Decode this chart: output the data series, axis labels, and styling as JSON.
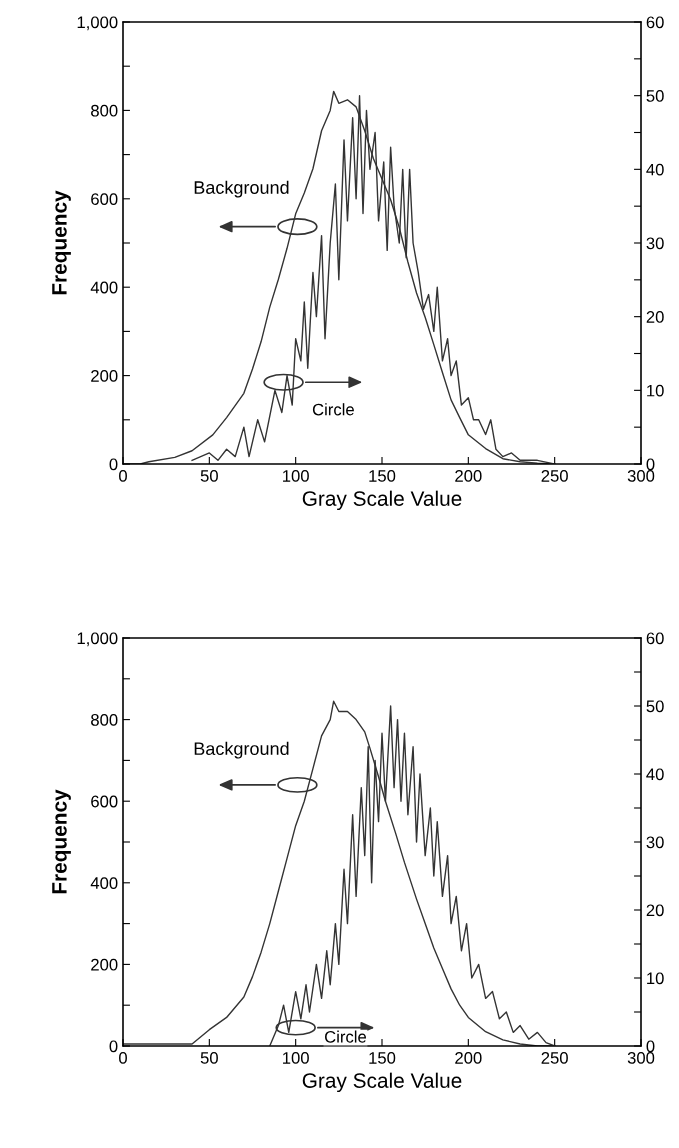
{
  "chart_data": [
    {
      "type": "line",
      "xlabel": "Gray Scale Value",
      "ylabel": "Frequency",
      "xlim": [
        0,
        300
      ],
      "xticks": [
        0,
        50,
        100,
        150,
        200,
        250,
        300
      ],
      "ylim": [
        0,
        1000
      ],
      "yticks": [
        0,
        {
          "value": 100,
          "label": null
        },
        200,
        {
          "value": 300,
          "label": null
        },
        400,
        {
          "value": 500,
          "label": null
        },
        600,
        {
          "value": 700,
          "label": null
        },
        800,
        {
          "value": 900,
          "label": null
        },
        {
          "value": 1000,
          "label": "1,000"
        }
      ],
      "y2lim": [
        0,
        60
      ],
      "y2ticks": [
        0,
        {
          "value": 5,
          "label": null
        },
        10,
        {
          "value": 15,
          "label": null
        },
        20,
        {
          "value": 25,
          "label": null
        },
        30,
        {
          "value": 35,
          "label": null
        },
        40,
        {
          "value": 45,
          "label": null
        },
        50,
        {
          "value": 55,
          "label": null
        },
        60
      ],
      "grid": false,
      "series": [
        {
          "color": "#333333",
          "x": [
            0,
            10,
            15,
            30,
            40,
            52,
            60,
            70,
            75,
            80,
            85,
            90,
            95,
            100,
            105,
            110,
            115,
            120,
            122,
            125,
            130,
            135,
            140,
            145,
            150,
            155,
            160,
            165,
            170,
            175,
            180,
            185,
            190,
            195,
            200,
            210,
            220,
            230,
            240,
            250
          ],
          "values": [
            0,
            0,
            5,
            15,
            30,
            66,
            105,
            160,
            215,
            277,
            355,
            418,
            488,
            566,
            613,
            668,
            754,
            800,
            843,
            816,
            824,
            808,
            754,
            691,
            645,
            598,
            535,
            457,
            387,
            332,
            270,
            207,
            145,
            105,
            66,
            35,
            12,
            5,
            2,
            0
          ]
        },
        {
          "color": "#333333",
          "axis": "y2",
          "x": [
            40,
            50,
            55,
            60,
            65,
            70,
            73,
            78,
            82,
            88,
            92,
            95,
            98,
            100,
            103,
            105,
            107,
            110,
            112,
            115,
            117,
            120,
            123,
            125,
            128,
            130,
            133,
            135,
            137,
            139,
            141,
            143,
            146,
            148,
            151,
            153,
            155,
            157,
            160,
            162,
            164,
            166,
            168,
            171,
            174,
            177,
            180,
            182,
            185,
            188,
            190,
            193,
            196,
            200,
            203,
            206,
            210,
            213,
            216,
            220,
            225,
            230,
            240,
            250
          ],
          "values": [
            0.5,
            1.5,
            0.5,
            2,
            1,
            5,
            1,
            6,
            3,
            10,
            7,
            12,
            8,
            17,
            14,
            22,
            13,
            26,
            20,
            31,
            17,
            30,
            38,
            25,
            44,
            33,
            47,
            36,
            50,
            34,
            48,
            40,
            45,
            33,
            41,
            29,
            43,
            35,
            30,
            40,
            28,
            40,
            30,
            26,
            21,
            23,
            18,
            24,
            14,
            17,
            12,
            14,
            8,
            9,
            6,
            6,
            4,
            6,
            2,
            1,
            1.5,
            0.5,
            0.5,
            0
          ]
        }
      ],
      "annotations": [
        {
          "text": "Background",
          "x": 101,
          "y": 537
        },
        {
          "text": "Circle",
          "x": 93,
          "y": 185
        }
      ]
    },
    {
      "type": "line",
      "xlabel": "Gray Scale Value",
      "ylabel": "Frequency",
      "xlim": [
        0,
        300
      ],
      "xticks": [
        0,
        50,
        100,
        150,
        200,
        250,
        300
      ],
      "ylim": [
        0,
        1000
      ],
      "yticks": [
        0,
        {
          "value": 100,
          "label": null
        },
        200,
        {
          "value": 300,
          "label": null
        },
        400,
        {
          "value": 500,
          "label": null
        },
        600,
        {
          "value": 700,
          "label": null
        },
        800,
        {
          "value": 900,
          "label": null
        },
        {
          "value": 1000,
          "label": "1,000"
        }
      ],
      "y2lim": [
        0,
        60
      ],
      "y2ticks": [
        0,
        {
          "value": 5,
          "label": null
        },
        10,
        {
          "value": 15,
          "label": null
        },
        20,
        {
          "value": 25,
          "label": null
        },
        30,
        {
          "value": 35,
          "label": null
        },
        40,
        {
          "value": 45,
          "label": null
        },
        50,
        {
          "value": 55,
          "label": null
        },
        60
      ],
      "grid": false,
      "series": [
        {
          "color": "#333333",
          "x": [
            0,
            40,
            50,
            60,
            70,
            75,
            80,
            85,
            90,
            95,
            100,
            105,
            110,
            115,
            120,
            122,
            125,
            130,
            135,
            140,
            143,
            148,
            152,
            158,
            163,
            170,
            175,
            180,
            185,
            190,
            195,
            200,
            210,
            220,
            230,
            240,
            250
          ],
          "values": [
            5,
            5,
            40,
            70,
            120,
            170,
            230,
            300,
            380,
            460,
            540,
            600,
            680,
            760,
            800,
            845,
            820,
            820,
            800,
            770,
            730,
            660,
            600,
            520,
            450,
            360,
            300,
            240,
            190,
            140,
            100,
            70,
            35,
            15,
            5,
            0,
            0
          ]
        },
        {
          "color": "#333333",
          "axis": "y2",
          "x": [
            85,
            90,
            93,
            96,
            100,
            103,
            106,
            108,
            112,
            115,
            118,
            120,
            123,
            125,
            128,
            130,
            133,
            135,
            138,
            140,
            142,
            144,
            146,
            148,
            150,
            152,
            155,
            157,
            159,
            161,
            163,
            165,
            168,
            170,
            172,
            175,
            178,
            180,
            182,
            185,
            188,
            190,
            193,
            196,
            199,
            202,
            206,
            210,
            214,
            218,
            222,
            226,
            230,
            235,
            240,
            245,
            250
          ],
          "values": [
            0,
            3,
            6,
            2,
            8,
            4,
            9,
            5,
            12,
            7,
            14,
            9,
            18,
            12,
            26,
            18,
            34,
            22,
            38,
            28,
            44,
            24,
            42,
            33,
            46,
            36,
            50,
            38,
            48,
            36,
            46,
            34,
            44,
            30,
            40,
            28,
            35,
            25,
            33,
            22,
            28,
            18,
            22,
            14,
            18,
            10,
            12,
            7,
            8,
            4,
            5,
            2,
            3,
            1,
            2,
            0.5,
            0
          ]
        }
      ],
      "annotations": [
        {
          "text": "Background",
          "x": 101,
          "y": 640
        },
        {
          "text": "Circle",
          "x": 100,
          "y": 45
        }
      ]
    }
  ]
}
